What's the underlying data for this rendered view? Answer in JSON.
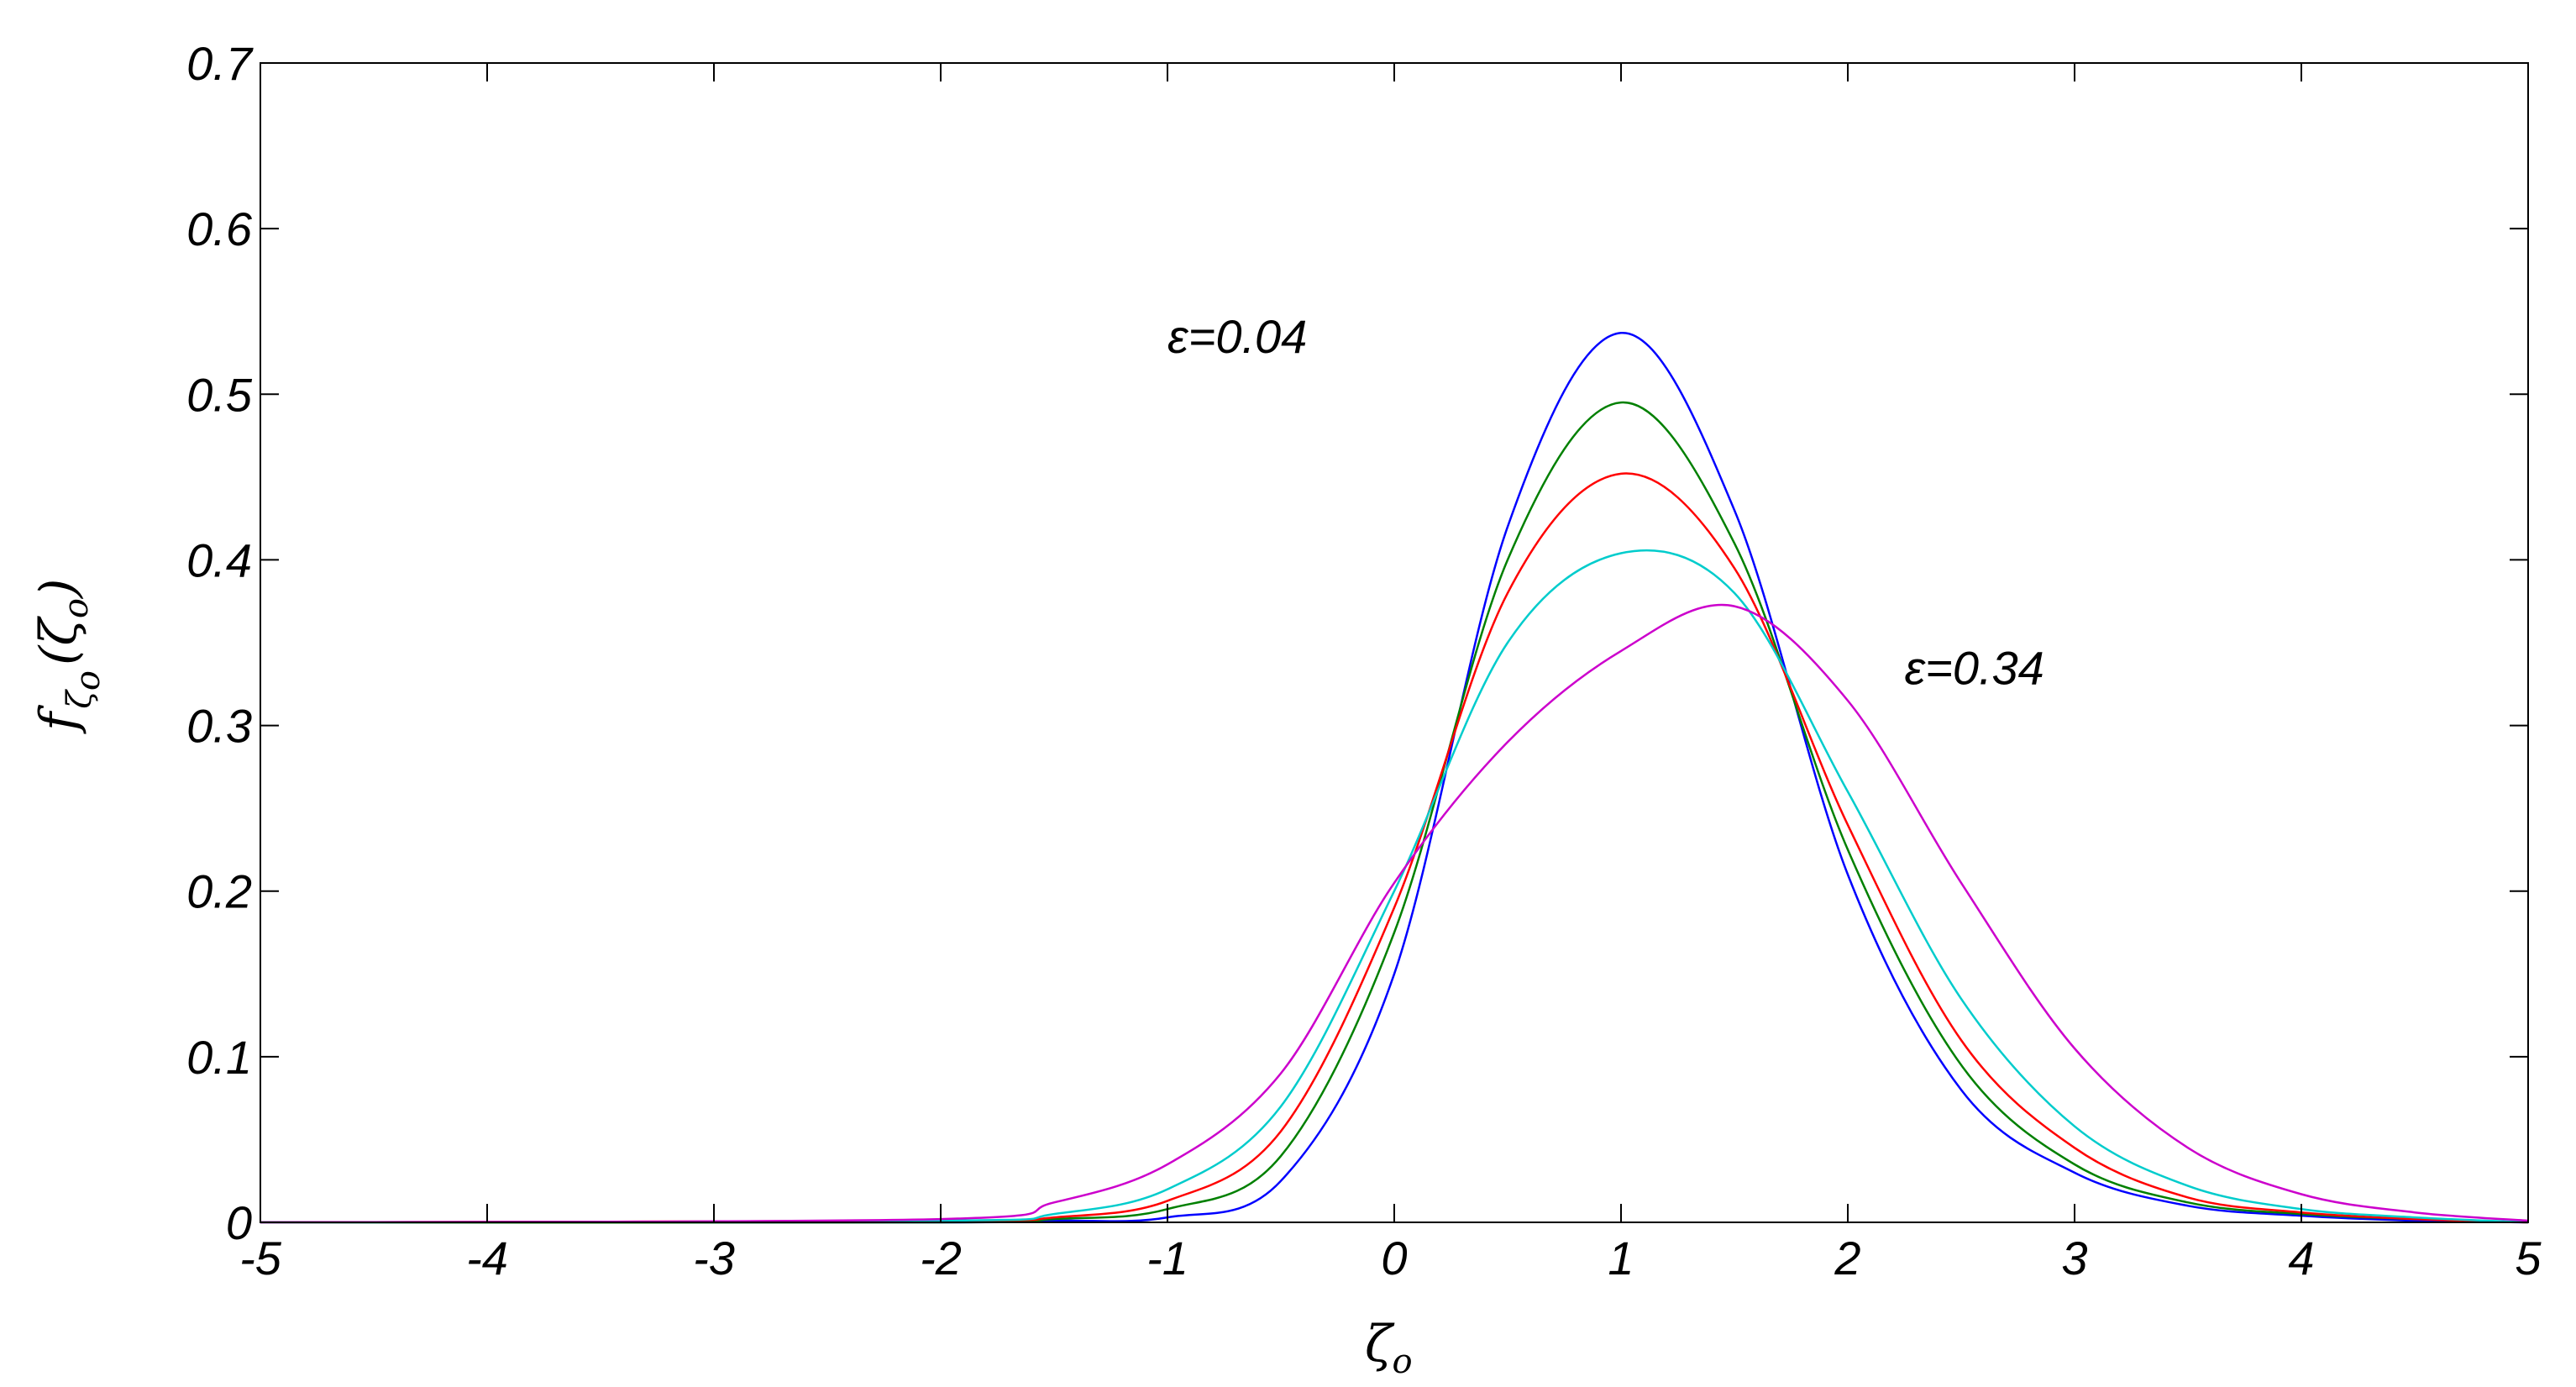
{
  "chart_data": {
    "type": "line",
    "title": "",
    "xlabel": {
      "main": "ζ",
      "sub": "o"
    },
    "ylabel": {
      "f": "f",
      "sub1": "ζ",
      "sub2": "o",
      "arg": "(ζ",
      "argsub": "o",
      "close": ")"
    },
    "xlim": [
      -5,
      5
    ],
    "ylim": [
      0,
      0.7
    ],
    "xticks": [
      "-5",
      "-4",
      "-3",
      "-2",
      "-1",
      "0",
      "1",
      "2",
      "3",
      "4",
      "5"
    ],
    "yticks": [
      "0",
      "0.1",
      "0.2",
      "0.3",
      "0.4",
      "0.5",
      "0.6",
      "0.7"
    ],
    "grid": false,
    "legend": "none",
    "annotations": [
      {
        "text": "ε=0.04",
        "x": -1.0,
        "y": 0.525
      },
      {
        "text": "ε=0.34",
        "x": 2.25,
        "y": 0.325
      }
    ],
    "series": [
      {
        "color": "#0000ff",
        "x": [
          -5,
          -2,
          -1.5,
          -1,
          -0.5,
          0,
          0.5,
          1,
          1.5,
          2,
          2.5,
          3,
          3.5,
          4,
          4.5,
          5
        ],
        "y": [
          0,
          0,
          0.001,
          0.003,
          0.025,
          0.15,
          0.42,
          0.537,
          0.43,
          0.21,
          0.08,
          0.03,
          0.01,
          0.004,
          0.001,
          0
        ]
      },
      {
        "color": "#008000",
        "x": [
          -5,
          -2,
          -1.5,
          -1,
          -0.5,
          0,
          0.5,
          1,
          1.5,
          2,
          2.5,
          3,
          3.5,
          4,
          4.5,
          5
        ],
        "y": [
          0,
          0,
          0.002,
          0.008,
          0.04,
          0.175,
          0.4,
          0.495,
          0.41,
          0.225,
          0.095,
          0.035,
          0.012,
          0.005,
          0.002,
          0
        ]
      },
      {
        "color": "#ff0000",
        "x": [
          -5,
          -2,
          -1.5,
          -1,
          -0.5,
          0,
          0.5,
          1,
          1.5,
          2,
          2.5,
          3,
          3.5,
          4,
          4.5,
          5
        ],
        "y": [
          0,
          0.001,
          0.003,
          0.013,
          0.055,
          0.19,
          0.38,
          0.452,
          0.395,
          0.24,
          0.11,
          0.045,
          0.015,
          0.006,
          0.002,
          0
        ]
      },
      {
        "color": "#00cccc",
        "x": [
          -5,
          -2,
          -1.5,
          -1,
          -0.5,
          0,
          0.5,
          1,
          1.5,
          2,
          2.5,
          3,
          3.5,
          4,
          4.5,
          5
        ],
        "y": [
          0,
          0.001,
          0.005,
          0.02,
          0.07,
          0.2,
          0.35,
          0.404,
          0.38,
          0.26,
          0.135,
          0.058,
          0.022,
          0.008,
          0.003,
          0
        ]
      },
      {
        "color": "#cc00cc",
        "x": [
          -5,
          -2,
          -1.5,
          -1,
          -0.5,
          0,
          0.5,
          1,
          1.5,
          2,
          2.5,
          3,
          3.5,
          4,
          4.5,
          5
        ],
        "y": [
          0,
          0.002,
          0.012,
          0.035,
          0.09,
          0.205,
          0.29,
          0.345,
          0.372,
          0.315,
          0.205,
          0.105,
          0.045,
          0.017,
          0.006,
          0.001
        ]
      }
    ]
  }
}
